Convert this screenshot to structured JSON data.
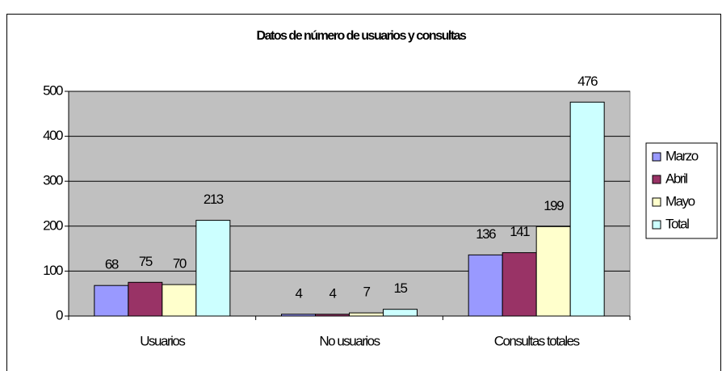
{
  "chart_data": {
    "type": "bar",
    "title": "Datos de número de usuarios y consultas",
    "categories": [
      "Usuarios",
      "No usuarios",
      "Consultas totales"
    ],
    "series": [
      {
        "name": "Marzo",
        "color": "#9999ff",
        "values": [
          68,
          4,
          136
        ]
      },
      {
        "name": "Abril",
        "color": "#993366",
        "values": [
          75,
          4,
          141
        ]
      },
      {
        "name": "Mayo",
        "color": "#ffffcc",
        "values": [
          70,
          7,
          199
        ]
      },
      {
        "name": "Total",
        "color": "#ccffff",
        "values": [
          213,
          15,
          476
        ]
      }
    ],
    "ylim": [
      0,
      500
    ],
    "yticks": [
      0,
      100,
      200,
      300,
      400,
      500
    ],
    "grid": true,
    "legend": "right",
    "plot_background": "#c0c0c0"
  }
}
